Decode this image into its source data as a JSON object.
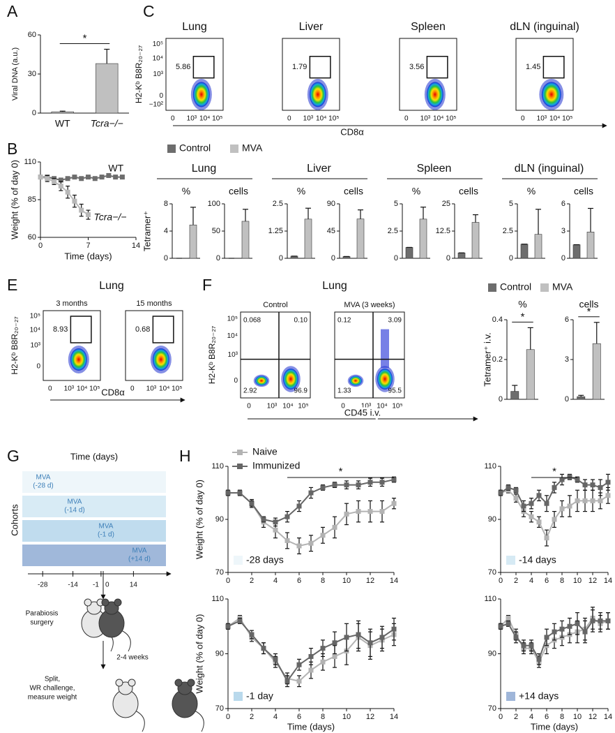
{
  "chart_data": [
    {
      "panel": "A",
      "type": "bar",
      "ylabel": "Viral DNA (a.u.)",
      "categories": [
        "WT",
        "Tcra−/−"
      ],
      "values": [
        1,
        38
      ],
      "errors": [
        0.5,
        11
      ],
      "color": "#c0c0c0",
      "ylim": [
        0,
        60
      ],
      "yticks": [
        0,
        30,
        60
      ],
      "annotation": "*"
    },
    {
      "panel": "B",
      "type": "line",
      "xlabel": "Time (days)",
      "ylabel": "Weight (% of day 0)",
      "xlim": [
        0,
        14
      ],
      "xticks": [
        0,
        7,
        14
      ],
      "ylim": [
        60,
        110
      ],
      "yticks": [
        60,
        85,
        110
      ],
      "series": [
        {
          "name": "WT",
          "color": "#6d6d6d",
          "x": [
            0,
            1,
            2,
            3,
            4,
            5,
            6,
            7,
            8,
            9,
            10,
            11,
            12
          ],
          "values": [
            100,
            100,
            99,
            98,
            99,
            100,
            99,
            100,
            99,
            100,
            101,
            100,
            100
          ]
        },
        {
          "name": "Tcra−/−",
          "color": "#b8b8b8",
          "x": [
            0,
            1,
            2,
            3,
            4,
            5,
            6,
            7
          ],
          "values": [
            100,
            99,
            97,
            94,
            90,
            84,
            78,
            75
          ],
          "errors": [
            1,
            2,
            2,
            3,
            4,
            4,
            4,
            3
          ]
        }
      ]
    },
    {
      "panel": "C",
      "type": "flow",
      "ylabel": "H2-Kᵇ B8R₂₀₋₂₇",
      "xlabel": "CD8α",
      "xticks": [
        "0",
        "10³",
        "10⁴",
        "10⁵"
      ],
      "yticks": [
        "10⁵",
        "10⁴",
        "10³",
        "0",
        "−10²"
      ],
      "plots": [
        {
          "title": "Lung",
          "gate": 5.86
        },
        {
          "title": "Liver",
          "gate": 1.79
        },
        {
          "title": "Spleen",
          "gate": 3.56
        },
        {
          "title": "dLN (inguinal)",
          "gate": 1.45
        }
      ]
    },
    {
      "panel": "D",
      "type": "bar-groups",
      "ylabel": "Tetramer⁺",
      "series": [
        {
          "name": "Control",
          "color": "#6d6d6d"
        },
        {
          "name": "MVA",
          "color": "#c0c0c0"
        }
      ],
      "groups": [
        {
          "title": "Lung",
          "charts": [
            {
              "label": "%",
              "values": [
                0,
                4.9
              ],
              "errors": [
                0,
                2.6
              ],
              "ylim": [
                0,
                8
              ],
              "yticks": [
                0,
                4,
                8
              ]
            },
            {
              "label": "cells",
              "values": [
                0,
                68
              ],
              "errors": [
                0,
                22
              ],
              "ylim": [
                0,
                100
              ],
              "yticks": [
                0,
                50,
                100
              ]
            }
          ]
        },
        {
          "title": "Liver",
          "charts": [
            {
              "label": "%",
              "values": [
                0.1,
                1.8
              ],
              "errors": [
                0,
                0.5
              ],
              "ylim": [
                0,
                2.5
              ],
              "yticks": [
                0,
                1.25,
                2.5
              ]
            },
            {
              "label": "cells",
              "values": [
                3,
                65
              ],
              "errors": [
                0,
                15
              ],
              "ylim": [
                0,
                90
              ],
              "yticks": [
                0,
                45,
                90
              ]
            }
          ]
        },
        {
          "title": "Spleen",
          "charts": [
            {
              "label": "%",
              "values": [
                1.0,
                3.6
              ],
              "errors": [
                0,
                1.1
              ],
              "ylim": [
                0,
                5
              ],
              "yticks": [
                0,
                2.5,
                5
              ]
            },
            {
              "label": "cells",
              "values": [
                2.5,
                16.5
              ],
              "errors": [
                0,
                3.5
              ],
              "ylim": [
                0,
                25
              ],
              "yticks": [
                0,
                12.5,
                25
              ]
            }
          ]
        },
        {
          "title": "dLN (inguinal)",
          "charts": [
            {
              "label": "%",
              "values": [
                1.3,
                2.2
              ],
              "errors": [
                0,
                2.3
              ],
              "ylim": [
                0,
                5
              ],
              "yticks": [
                0,
                2.5,
                5
              ]
            },
            {
              "label": "cells",
              "values": [
                1.5,
                2.9
              ],
              "errors": [
                0,
                2.6
              ],
              "ylim": [
                0,
                6
              ],
              "yticks": [
                0,
                3,
                6
              ]
            }
          ]
        }
      ]
    },
    {
      "panel": "E",
      "type": "flow",
      "title": "Lung",
      "ylabel": "H2-Kᵇ B8R₂₀₋₂₇",
      "xlabel": "CD8α",
      "xticks": [
        "0",
        "10³",
        "10⁴",
        "10⁵"
      ],
      "yticks": [
        "10⁵",
        "10⁴",
        "10³",
        "0"
      ],
      "plots": [
        {
          "title": "3 months",
          "gate": 8.93
        },
        {
          "title": "15 months",
          "gate": 0.68
        }
      ]
    },
    {
      "panel": "F",
      "type": "flow-quadrant",
      "title": "Lung",
      "ylabel": "H2-Kᵇ B8R₂₀₋₂₇",
      "xlabel": "CD45 i.v.",
      "xticks": [
        "0",
        "10³",
        "10⁴",
        "10⁵"
      ],
      "yticks": [
        "10⁵",
        "10⁴",
        "10³",
        "0"
      ],
      "plots": [
        {
          "title": "Control",
          "quadrants": [
            0.068,
            "0.10",
            2.92,
            96.9
          ]
        },
        {
          "title": "MVA (3 weeks)",
          "quadrants": [
            0.12,
            3.09,
            1.33,
            95.5
          ]
        }
      ]
    },
    {
      "type": "bar-groups",
      "ylabel": "Tetramer⁺ i.v.",
      "series": [
        {
          "name": "Control",
          "color": "#6d6d6d"
        },
        {
          "name": "MVA",
          "color": "#c0c0c0"
        }
      ],
      "groups": [
        {
          "charts": [
            {
              "label": "%",
              "values": [
                0.04,
                0.25
              ],
              "errors": [
                0.03,
                0.11
              ],
              "ylim": [
                0,
                0.4
              ],
              "yticks": [
                0,
                0.2,
                0.4
              ],
              "annotation": "*"
            },
            {
              "label": "cells",
              "values": [
                0.2,
                4.2
              ],
              "errors": [
                0.1,
                1.6
              ],
              "ylim": [
                0,
                6
              ],
              "yticks": [
                0,
                3,
                6
              ],
              "annotation": "*"
            }
          ]
        }
      ]
    },
    {
      "panel": "G",
      "type": "diagram",
      "title": "Time (days)",
      "ylabel": "Cohorts",
      "ticks": [
        -28,
        -14,
        -1,
        0,
        14
      ],
      "cohorts": [
        [
          "MVA",
          "(-28 d)"
        ],
        [
          "MVA",
          "(-14 d)"
        ],
        [
          "MVA",
          "(-1 d)"
        ],
        [
          "MVA",
          "(+14 d)"
        ]
      ],
      "steps": [
        [
          "Parabiosis",
          "surgery"
        ],
        [
          "2-4 weeks"
        ],
        [
          "Split,",
          "WR challenge,",
          "measure weight"
        ]
      ]
    },
    {
      "panel": "H",
      "type": "line-multi",
      "xlabel": "Time (days)",
      "ylabel": "Weight (% of day 0)",
      "xlim": [
        0,
        14
      ],
      "xticks": [
        0,
        2,
        4,
        6,
        8,
        10,
        12,
        14
      ],
      "ylim": [
        70,
        110
      ],
      "yticks": [
        70,
        90,
        110
      ],
      "series": [
        {
          "name": "Naive",
          "color": "#b3b3b3"
        },
        {
          "name": "Immunized",
          "color": "#666666"
        }
      ],
      "x": [
        0,
        1,
        2,
        3,
        4,
        5,
        6,
        7,
        8,
        9,
        10,
        11,
        12,
        13,
        14
      ],
      "charts": [
        {
          "label": "-28 days",
          "color": "#eef6fa",
          "annotation": "*",
          "sig": [
            5,
            14
          ],
          "series": [
            {
              "values": [
                100,
                100,
                96,
                89,
                86,
                82,
                80,
                81,
                84,
                87,
                92,
                93,
                93,
                93,
                96
              ],
              "errors": [
                1,
                1,
                1.5,
                2,
                3,
                3,
                3,
                3,
                3,
                4,
                4,
                4,
                4,
                4,
                2
              ]
            },
            {
              "values": [
                100,
                100,
                96,
                90,
                89,
                91,
                95,
                100,
                102,
                103,
                103,
                103,
                104,
                104,
                105
              ],
              "errors": [
                1,
                1,
                1,
                1,
                1.5,
                2,
                2,
                2,
                1,
                1,
                1.5,
                1.5,
                1.5,
                1.5,
                1
              ]
            }
          ]
        },
        {
          "label": "-14 days",
          "color": "#d6eaf4",
          "annotation": "*",
          "sig": [
            4,
            10
          ],
          "series": [
            {
              "values": [
                100,
                101,
                98,
                93,
                91,
                89,
                83,
                90,
                94,
                95,
                97,
                97,
                97,
                97,
                99
              ],
              "errors": [
                1,
                1,
                1.5,
                2,
                2,
                2,
                3,
                3,
                3,
                4,
                4,
                4,
                4,
                3,
                3
              ]
            },
            {
              "values": [
                100,
                102,
                101,
                95,
                96,
                99,
                96,
                102,
                105,
                106,
                105,
                103,
                103,
                102,
                104
              ],
              "errors": [
                1,
                1,
                1,
                2,
                2,
                2,
                3,
                2,
                2,
                1,
                1,
                2,
                2,
                3,
                3
              ]
            }
          ]
        },
        {
          "label": "-1 day",
          "color": "#b9d9ec",
          "series": [
            {
              "values": [
                100,
                103,
                96,
                92,
                87,
                81,
                80,
                84,
                87,
                89,
                91,
                96,
                93,
                95,
                97
              ],
              "errors": [
                1,
                1,
                1.5,
                2,
                2,
                2,
                2,
                3,
                3,
                4,
                5,
                5,
                5,
                4,
                4
              ]
            },
            {
              "values": [
                100,
                102,
                97,
                92,
                88,
                80,
                86,
                89,
                92,
                94,
                96,
                97,
                94,
                96,
                99
              ],
              "errors": [
                1,
                1,
                1.5,
                2,
                2,
                2,
                2,
                3,
                3,
                4,
                5,
                5,
                5,
                4,
                4
              ]
            }
          ]
        },
        {
          "label": "+14 days",
          "color": "#9fb6d9",
          "series": [
            {
              "values": [
                100,
                103,
                97,
                92,
                92,
                87,
                93,
                95,
                96,
                97,
                98,
                99,
                103,
                101,
                102
              ],
              "errors": [
                1,
                1,
                2,
                2,
                2,
                2,
                3,
                3,
                3,
                3,
                4,
                4,
                4,
                3,
                3
              ]
            },
            {
              "values": [
                100,
                101,
                96,
                93,
                93,
                88,
                96,
                98,
                99,
                100,
                101,
                98,
                102,
                102,
                102
              ],
              "errors": [
                1,
                1,
                2,
                2,
                2,
                2,
                3,
                3,
                3,
                3,
                4,
                4,
                4,
                3,
                3
              ]
            }
          ]
        }
      ]
    }
  ]
}
